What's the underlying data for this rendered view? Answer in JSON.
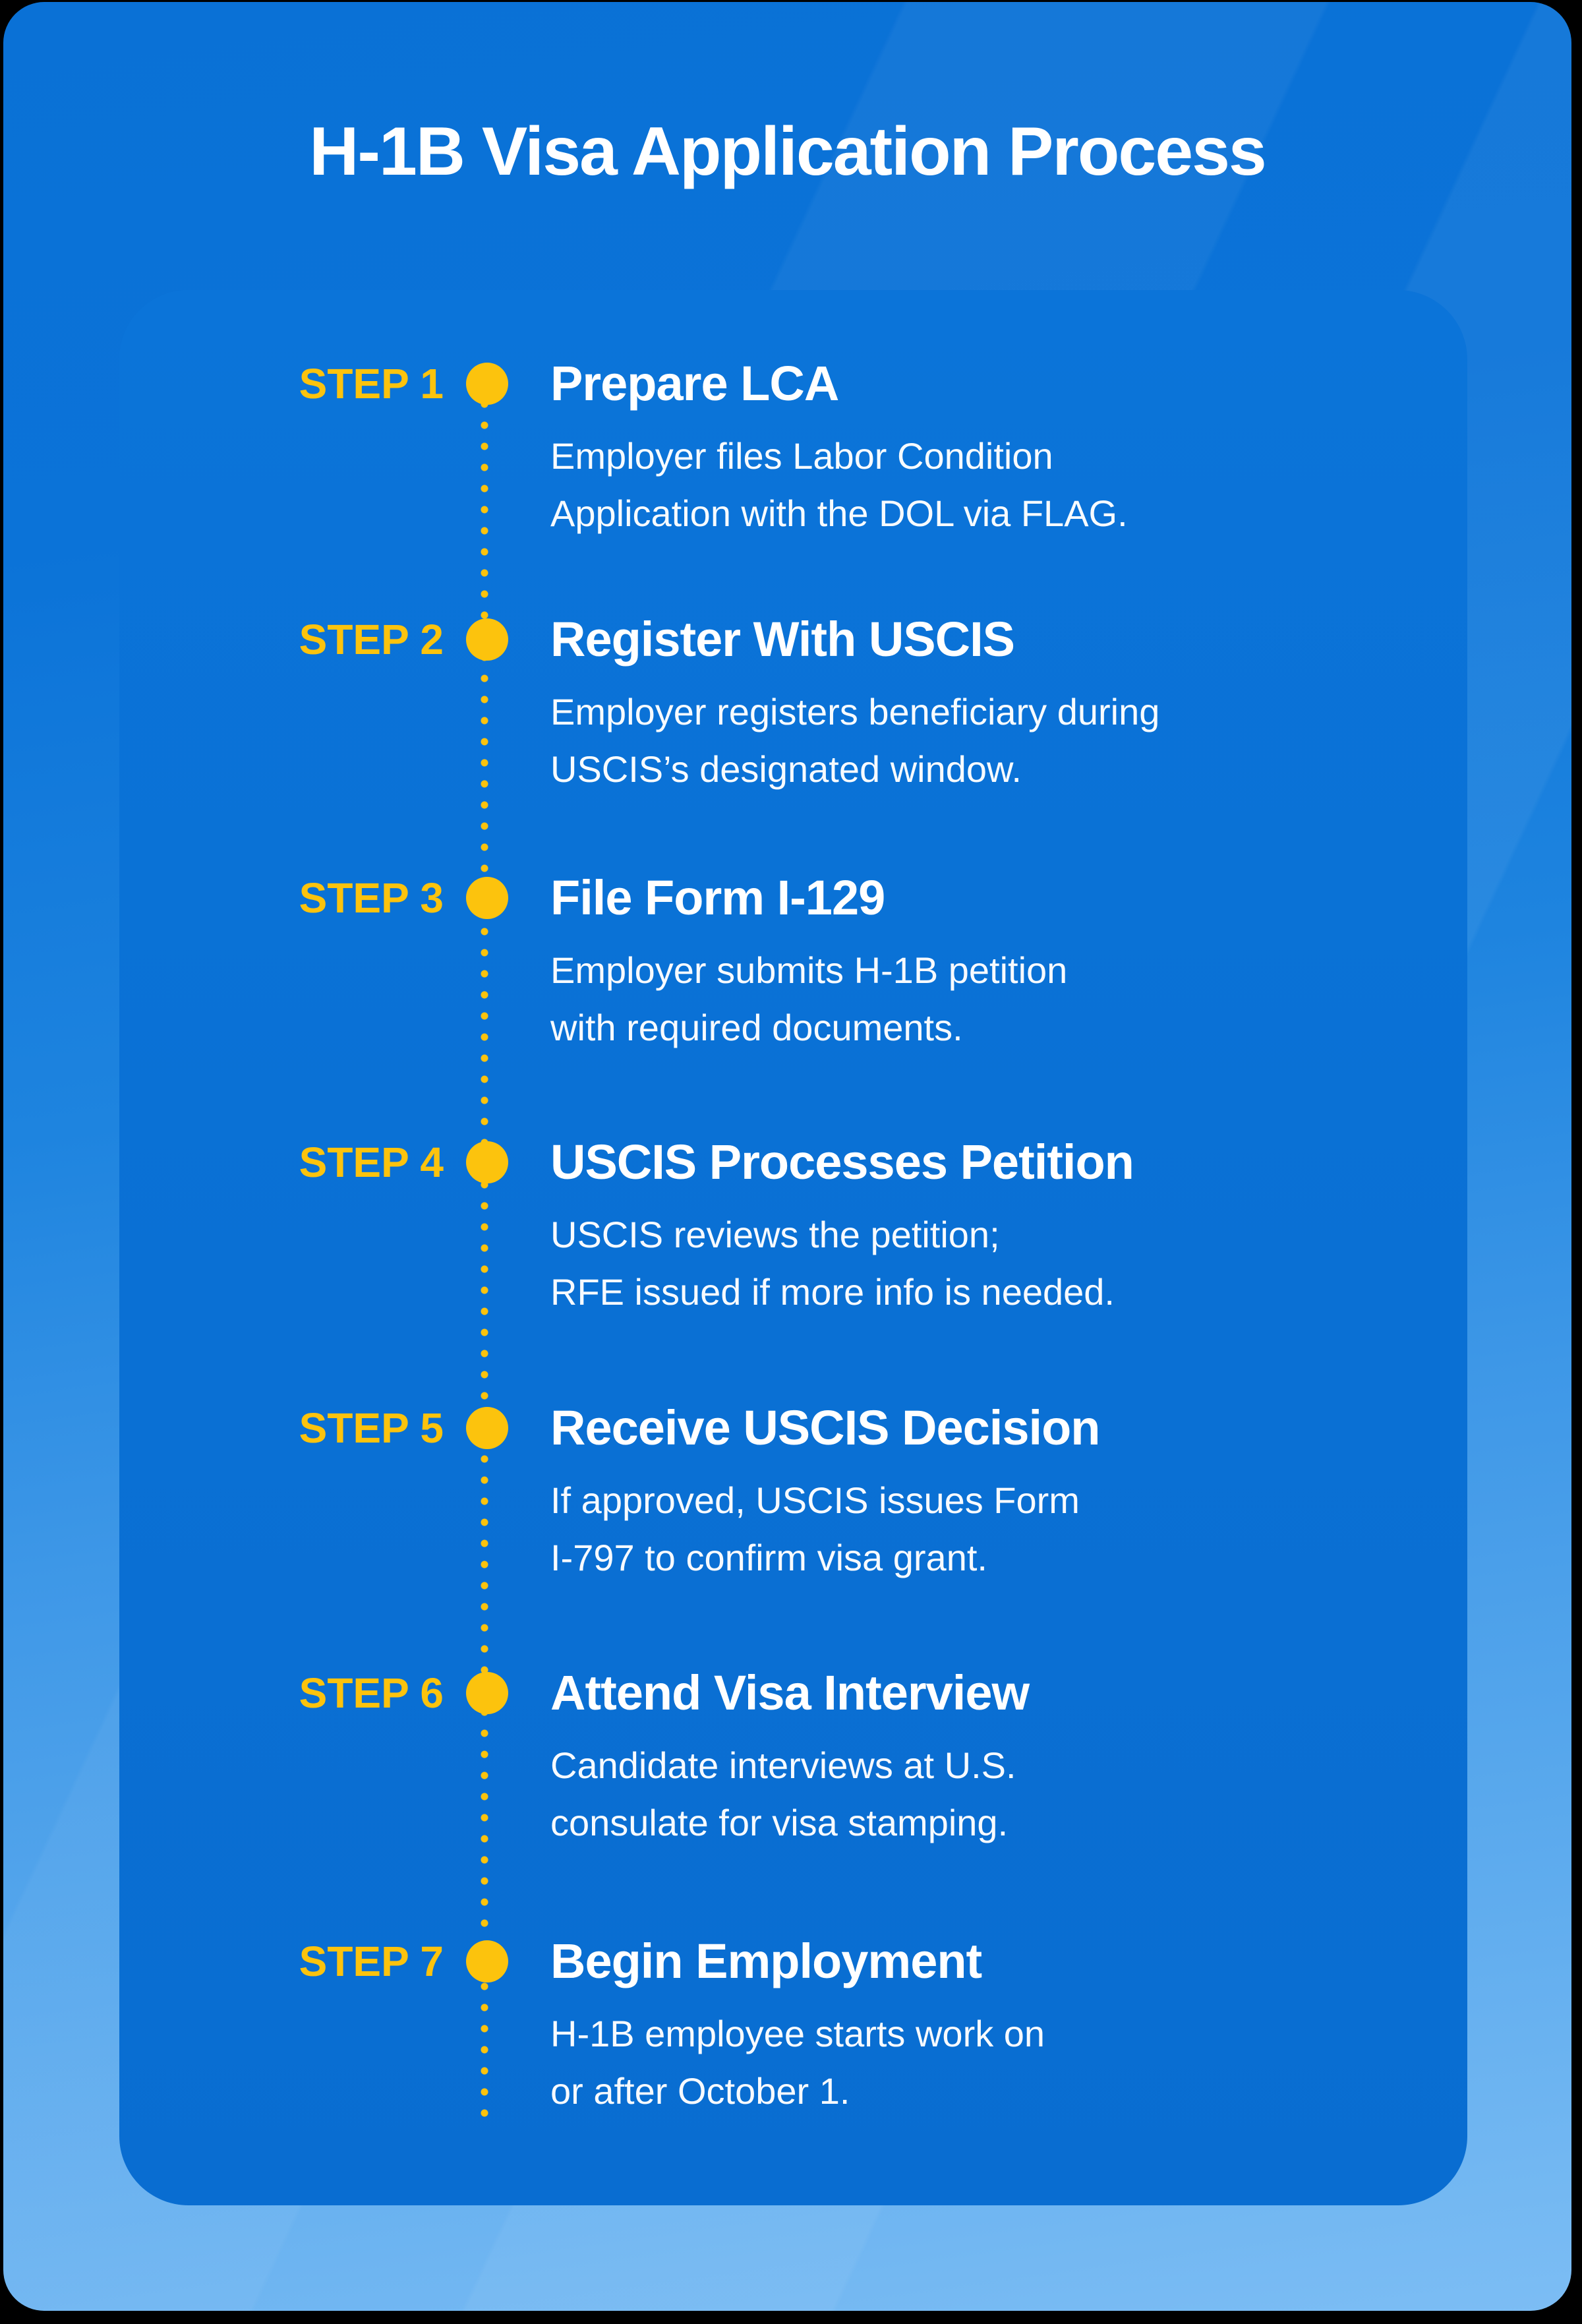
{
  "title": "H-1B Visa Application Process",
  "colors": {
    "outer_card_top_blue": "#0b73d8",
    "outer_card_bottom_blue": "#7cbdf4",
    "inner_panel_blue": "#0a70d4",
    "accent_yellow": "#fcc30d",
    "text_white": "#ffffff",
    "page_background": "#000000"
  },
  "steps": [
    {
      "label": "STEP 1",
      "title": "Prepare LCA",
      "description": "Employer files Labor Condition\nApplication with the DOL via FLAG."
    },
    {
      "label": "STEP 2",
      "title": "Register With USCIS",
      "description": "Employer registers beneficiary during\nUSCIS’s designated window."
    },
    {
      "label": "STEP 3",
      "title": "File Form I-129",
      "description": "Employer submits H-1B petition\nwith required documents."
    },
    {
      "label": "STEP 4",
      "title": "USCIS Processes Petition",
      "description": "USCIS reviews the petition;\nRFE issued if more info is needed."
    },
    {
      "label": "STEP 5",
      "title": "Receive USCIS Decision",
      "description": "If approved, USCIS issues Form\nI-797 to confirm visa grant."
    },
    {
      "label": "STEP 6",
      "title": "Attend Visa Interview",
      "description": "Candidate interviews at U.S.\nconsulate for visa stamping."
    },
    {
      "label": "STEP 7",
      "title": "Begin Employment",
      "description": "H-1B employee starts work on\nor after October 1."
    }
  ]
}
